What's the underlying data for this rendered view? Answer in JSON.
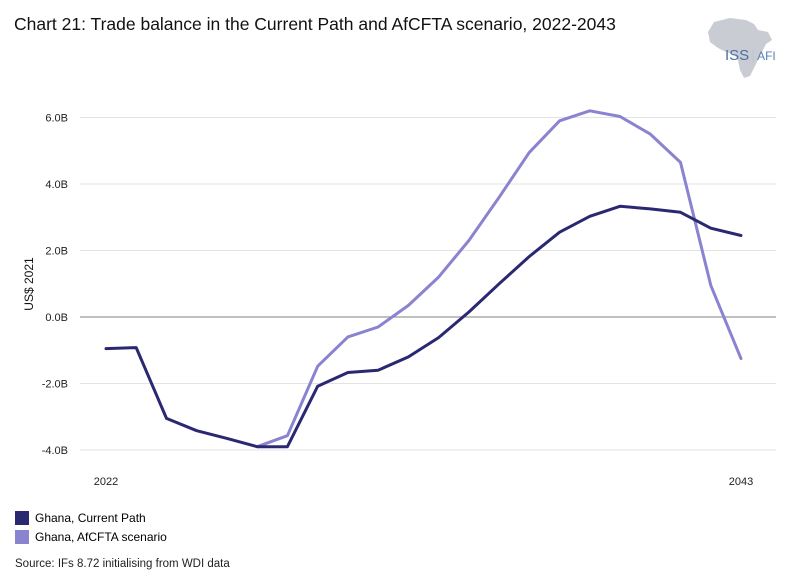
{
  "title": "Chart 21: Trade balance in the Current Path and AfCFTA scenario, 2022-2043",
  "logo": {
    "primary": "ISS",
    "secondary": "AFI"
  },
  "source": "Source: IFs 8.72 initialising from WDI data",
  "chart_data": {
    "type": "line",
    "ylabel": "US$ 2021",
    "ylim": [
      -4.2,
      6.2
    ],
    "yticks": [
      -4,
      -2,
      0,
      2,
      4,
      6
    ],
    "ytick_labels": [
      "-4.0B",
      "-2.0B",
      "0.0B",
      "2.0B",
      "4.0B",
      "6.0B"
    ],
    "xticks_shown": [
      "2022",
      "2043"
    ],
    "x": [
      2022,
      2023,
      2024,
      2025,
      2026,
      2027,
      2028,
      2029,
      2030,
      2031,
      2032,
      2033,
      2034,
      2035,
      2036,
      2037,
      2038,
      2039,
      2040,
      2041,
      2042,
      2043
    ],
    "grid": true,
    "legend_position": "bottom-left",
    "series": [
      {
        "name": "Ghana, Current Path",
        "color": "#2b2872",
        "values": [
          -0.95,
          -0.92,
          -3.05,
          -3.42,
          -3.65,
          -3.9,
          -3.9,
          -2.08,
          -1.67,
          -1.6,
          -1.2,
          -0.62,
          0.15,
          1.0,
          1.82,
          2.55,
          3.03,
          3.33,
          3.25,
          3.15,
          2.67,
          2.45
        ]
      },
      {
        "name": "Ghana, AfCFTA scenario",
        "color": "#8983d0",
        "values": [
          null,
          null,
          null,
          null,
          null,
          -3.9,
          -3.57,
          -1.48,
          -0.6,
          -0.3,
          0.35,
          1.2,
          2.3,
          3.6,
          4.95,
          5.9,
          6.2,
          6.03,
          5.5,
          4.65,
          0.95,
          -1.25
        ]
      }
    ]
  }
}
